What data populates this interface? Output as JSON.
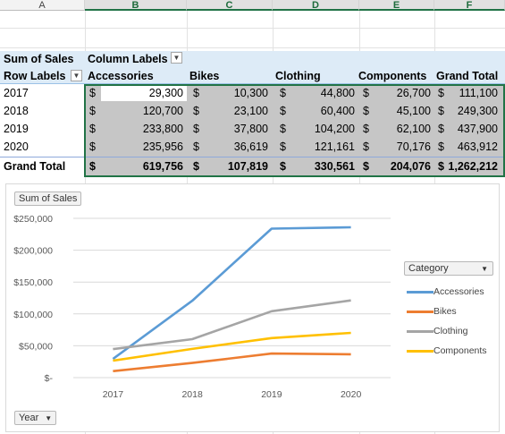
{
  "columns": [
    "A",
    "B",
    "C",
    "D",
    "E",
    "F"
  ],
  "pivot": {
    "values_label": "Sum of Sales",
    "column_labels": "Column Labels",
    "row_labels": "Row Labels",
    "headers": [
      "Accessories",
      "Bikes",
      "Clothing",
      "Components",
      "Grand Total"
    ],
    "currency": "$",
    "rows": [
      {
        "label": "2017",
        "values": [
          "29,300",
          "10,300",
          "44,800",
          "26,700",
          "111,100"
        ]
      },
      {
        "label": "2018",
        "values": [
          "120,700",
          "23,100",
          "60,400",
          "45,100",
          "249,300"
        ]
      },
      {
        "label": "2019",
        "values": [
          "233,800",
          "37,800",
          "104,200",
          "62,100",
          "437,900"
        ]
      },
      {
        "label": "2020",
        "values": [
          "235,956",
          "36,619",
          "121,161",
          "70,176",
          "463,912"
        ]
      }
    ],
    "grand_total": {
      "label": "Grand Total",
      "values": [
        "619,756",
        "107,819",
        "330,561",
        "204,076",
        "1,262,212"
      ]
    }
  },
  "chart": {
    "values_button": "Sum of Sales",
    "axis_button": "Year",
    "legend_button": "Category",
    "ytick_labels": [
      "$250,000",
      "$200,000",
      "$150,000",
      "$100,000",
      "$50,000",
      "$-"
    ]
  },
  "chart_data": {
    "type": "line",
    "categories": [
      "2017",
      "2018",
      "2019",
      "2020"
    ],
    "ylim": [
      0,
      250000
    ],
    "grid": true,
    "legend_position": "right",
    "series": [
      {
        "name": "Accessories",
        "color": "#5b9bd5",
        "values": [
          29300,
          120700,
          233800,
          235956
        ]
      },
      {
        "name": "Bikes",
        "color": "#ed7d31",
        "values": [
          10300,
          23100,
          37800,
          36619
        ]
      },
      {
        "name": "Clothing",
        "color": "#a5a5a5",
        "values": [
          44800,
          60400,
          104200,
          121161
        ]
      },
      {
        "name": "Components",
        "color": "#ffc000",
        "values": [
          26700,
          45100,
          62100,
          70176
        ]
      }
    ]
  }
}
